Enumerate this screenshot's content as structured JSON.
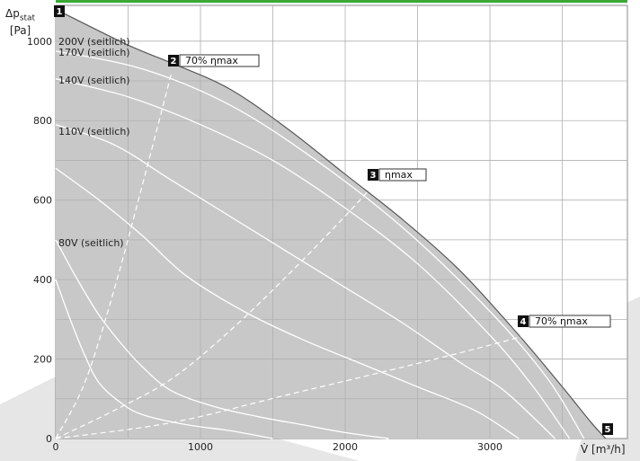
{
  "accent_color": "#3aa935",
  "area_color": "#c8c8c8",
  "y_axis_label": {
    "main": "Δp",
    "sub": "stat",
    "unit": "[Pa]"
  },
  "x_axis_label": "V̇ [m³/h]",
  "chart_data": {
    "type": "line",
    "xlim": [
      0,
      3950
    ],
    "ylim": [
      0,
      1090
    ],
    "x_ticks": [
      0,
      1000,
      2000,
      3000
    ],
    "y_ticks": [
      0,
      200,
      400,
      600,
      800,
      1000
    ],
    "grid": true,
    "envelope": {
      "name": "",
      "x": [
        0,
        500,
        800,
        1200,
        1600,
        2000,
        2400,
        2800,
        3200,
        3500,
        3700,
        3800
      ],
      "y": [
        1080,
        990,
        945,
        880,
        780,
        665,
        550,
        420,
        260,
        130,
        40,
        0
      ]
    },
    "series": [
      {
        "name": "200V (seitlich)",
        "x": [
          0,
          500,
          800,
          1200,
          1600,
          2000,
          2400,
          2800,
          3200,
          3500,
          3700,
          3800
        ],
        "y": [
          1080,
          990,
          945,
          880,
          780,
          665,
          550,
          420,
          260,
          130,
          40,
          0
        ]
      },
      {
        "name": "170V (seitlich)",
        "x": [
          0,
          600,
          1200,
          1800,
          2400,
          3000,
          3400,
          3650
        ],
        "y": [
          975,
          930,
          840,
          700,
          530,
          320,
          150,
          0
        ]
      },
      {
        "name": "140V (seitlich)",
        "x": [
          0,
          500,
          1000,
          1500,
          2000,
          2500,
          3000,
          3300,
          3550
        ],
        "y": [
          905,
          860,
          790,
          700,
          580,
          440,
          260,
          130,
          0
        ]
      },
      {
        "name": "110V (seitlich)",
        "x": [
          0,
          400,
          800,
          1200,
          1600,
          2000,
          2400,
          2800,
          3100,
          3450
        ],
        "y": [
          790,
          740,
          650,
          560,
          470,
          380,
          290,
          190,
          120,
          0
        ]
      },
      {
        "name": "",
        "x": [
          0,
          300,
          600,
          900,
          1300,
          1700,
          2100,
          2500,
          2900,
          3200
        ],
        "y": [
          680,
          600,
          510,
          410,
          320,
          250,
          190,
          130,
          70,
          0
        ]
      },
      {
        "name": "80V (seitlich)",
        "x": [
          0,
          150,
          300,
          450,
          600,
          800,
          1100,
          1400,
          1700,
          2000,
          2300
        ],
        "y": [
          500,
          400,
          310,
          240,
          180,
          120,
          80,
          55,
          35,
          15,
          0
        ]
      },
      {
        "name": "",
        "x": [
          0,
          100,
          200,
          300,
          450,
          600,
          900,
          1200,
          1500
        ],
        "y": [
          400,
          300,
          210,
          140,
          90,
          60,
          35,
          20,
          0
        ]
      }
    ],
    "reference_lines": [
      {
        "name": "70% ηmax",
        "x": [
          0,
          200,
          400,
          600,
          800
        ],
        "y": [
          0,
          140,
          370,
          640,
          920
        ]
      },
      {
        "name": "ηmax",
        "x": [
          0,
          400,
          800,
          1200,
          1600,
          2000,
          2300
        ],
        "y": [
          0,
          70,
          150,
          270,
          410,
          560,
          680
        ]
      },
      {
        "name": "70% ηmax",
        "x": [
          0,
          800,
          1600,
          2400,
          3000,
          3300
        ],
        "y": [
          0,
          40,
          110,
          180,
          235,
          265
        ]
      }
    ],
    "markers": [
      {
        "number": "1",
        "x": 0,
        "y": 1080,
        "label": ""
      },
      {
        "number": "2",
        "x": 800,
        "y": 950,
        "label": "70% ηmax"
      },
      {
        "number": "3",
        "x": 2200,
        "y": 660,
        "label": "ηmax"
      },
      {
        "number": "4",
        "x": 3300,
        "y": 290,
        "label": "70% ηmax"
      },
      {
        "number": "5",
        "x": 3800,
        "y": 0,
        "label": ""
      }
    ],
    "tick_labels_y": [
      "0",
      "200",
      "400",
      "600",
      "800",
      "1000"
    ],
    "tick_labels_x": [
      "0",
      "1000",
      "2000",
      "3000"
    ]
  }
}
